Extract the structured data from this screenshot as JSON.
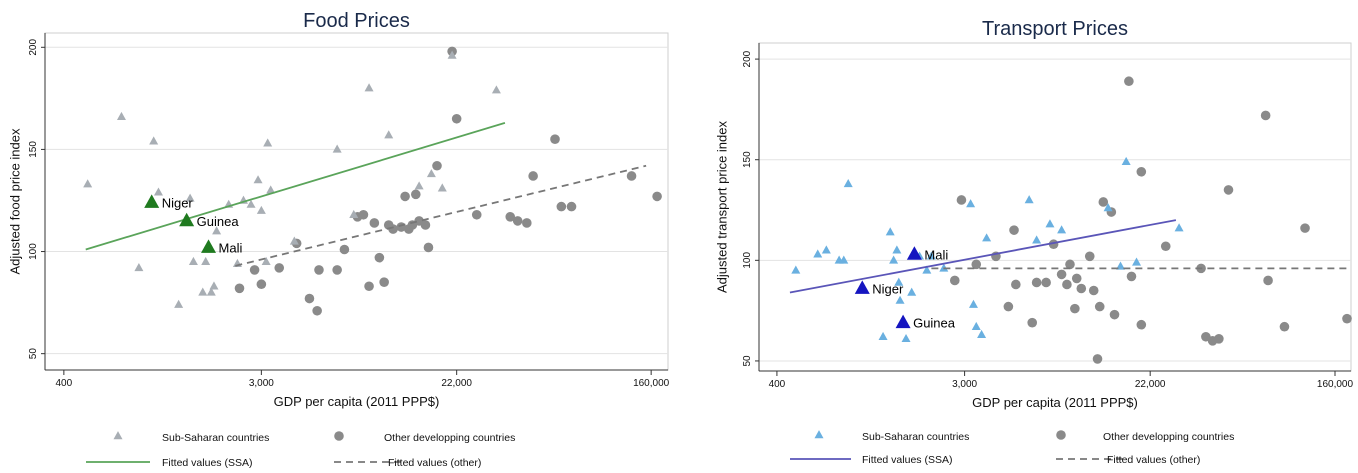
{
  "chart_data": [
    {
      "type": "scatter",
      "title": "Food Prices",
      "xlabel": "GDP per capita (2011 PPP$)",
      "ylabel": "Adjusted food price index",
      "xscale": "log",
      "xlim": [
        330,
        190000
      ],
      "ylim": [
        42,
        207
      ],
      "xticks": [
        400,
        3000,
        22000,
        160000
      ],
      "xtick_labels": [
        "400",
        "3,000",
        "22,000",
        "160,000"
      ],
      "yticks": [
        50,
        100,
        150,
        200
      ],
      "ytick_labels": [
        "50",
        "100",
        "150",
        "200"
      ],
      "grid": "horizontal",
      "colors": {
        "ssa": "#a8aeb4",
        "other": "#8a8a8a",
        "highlight": "#1f7a1f",
        "fit_ssa": "#5aa45a",
        "fit_other": "#777777"
      },
      "ssa_points": [
        [
          510,
          133
        ],
        [
          720,
          166
        ],
        [
          860,
          92
        ],
        [
          1000,
          154
        ],
        [
          1050,
          129
        ],
        [
          1290,
          74
        ],
        [
          1450,
          126
        ],
        [
          1500,
          95
        ],
        [
          1650,
          80
        ],
        [
          1700,
          95
        ],
        [
          1800,
          80
        ],
        [
          1850,
          83
        ],
        [
          1900,
          110
        ],
        [
          2150,
          123
        ],
        [
          2350,
          94
        ],
        [
          2500,
          125
        ],
        [
          2700,
          123
        ],
        [
          2900,
          135
        ],
        [
          3000,
          120
        ],
        [
          3200,
          153
        ],
        [
          3300,
          130
        ],
        [
          3150,
          95
        ],
        [
          4200,
          105
        ],
        [
          6500,
          150
        ],
        [
          7700,
          118
        ],
        [
          9000,
          180
        ],
        [
          11000,
          157
        ],
        [
          15000,
          132
        ],
        [
          17000,
          138
        ],
        [
          19000,
          131
        ],
        [
          21000,
          196
        ],
        [
          33000,
          179
        ]
      ],
      "other_points": [
        [
          2400,
          82
        ],
        [
          2800,
          91
        ],
        [
          3000,
          84
        ],
        [
          3600,
          92
        ],
        [
          4300,
          104
        ],
        [
          4900,
          77
        ],
        [
          5300,
          71
        ],
        [
          5400,
          91
        ],
        [
          6500,
          91
        ],
        [
          7000,
          101
        ],
        [
          8000,
          117
        ],
        [
          8500,
          118
        ],
        [
          9000,
          83
        ],
        [
          9500,
          114
        ],
        [
          10000,
          97
        ],
        [
          10500,
          85
        ],
        [
          11000,
          113
        ],
        [
          11500,
          111
        ],
        [
          12500,
          112
        ],
        [
          13000,
          127
        ],
        [
          13500,
          111
        ],
        [
          14000,
          113
        ],
        [
          14500,
          128
        ],
        [
          15000,
          115
        ],
        [
          16000,
          113
        ],
        [
          16500,
          102
        ],
        [
          18000,
          142
        ],
        [
          21000,
          198
        ],
        [
          22000,
          165
        ],
        [
          27000,
          118
        ],
        [
          38000,
          117
        ],
        [
          41000,
          115
        ],
        [
          45000,
          114
        ],
        [
          48000,
          137
        ],
        [
          60000,
          155
        ],
        [
          64000,
          122
        ],
        [
          71000,
          122
        ],
        [
          131000,
          137
        ],
        [
          170000,
          127
        ]
      ],
      "highlighted": [
        {
          "label": "Niger",
          "x": 980,
          "y": 124
        },
        {
          "label": "Guinea",
          "x": 1400,
          "y": 115
        },
        {
          "label": "Mali",
          "x": 1750,
          "y": 102
        }
      ],
      "fit_lines": [
        {
          "name": "Fitted values (SSA)",
          "style": "solid",
          "x": [
            500,
            36000
          ],
          "y": [
            101,
            163
          ]
        },
        {
          "name": "Fitted values (other)",
          "style": "dashed",
          "x": [
            2300,
            152000
          ],
          "y": [
            93,
            142
          ]
        }
      ],
      "legend": {
        "placement": "bottom",
        "items": [
          "Sub-Saharan countries",
          "Other developping countries",
          "Fitted values (SSA)",
          "Fitted values (other)"
        ]
      }
    },
    {
      "type": "scatter",
      "title": "Transport Prices",
      "xlabel": "GDP per capita (2011 PPP$)",
      "ylabel": "Adjusted transport price index",
      "xscale": "log",
      "xlim": [
        330,
        190000
      ],
      "ylim": [
        45,
        208
      ],
      "xticks": [
        400,
        3000,
        22000,
        160000
      ],
      "xtick_labels": [
        "400",
        "3,000",
        "22,000",
        "160,000"
      ],
      "yticks": [
        50,
        100,
        150,
        200
      ],
      "ytick_labels": [
        "50",
        "100",
        "150",
        "200"
      ],
      "grid": "horizontal",
      "colors": {
        "ssa": "#6ab0e0",
        "other": "#8a8a8a",
        "highlight": "#1515c0",
        "fit_ssa": "#5a55b8",
        "fit_other": "#777777"
      },
      "ssa_points": [
        [
          490,
          95
        ],
        [
          620,
          103
        ],
        [
          680,
          105
        ],
        [
          780,
          100
        ],
        [
          820,
          100
        ],
        [
          860,
          138
        ],
        [
          1250,
          62
        ],
        [
          1350,
          114
        ],
        [
          1400,
          100
        ],
        [
          1450,
          105
        ],
        [
          1480,
          89
        ],
        [
          1500,
          80
        ],
        [
          1600,
          61
        ],
        [
          1700,
          84
        ],
        [
          1850,
          102
        ],
        [
          2000,
          95
        ],
        [
          2100,
          102
        ],
        [
          2400,
          96
        ],
        [
          3200,
          128
        ],
        [
          3300,
          78
        ],
        [
          3400,
          67
        ],
        [
          3600,
          63
        ],
        [
          3800,
          111
        ],
        [
          6000,
          130
        ],
        [
          6500,
          110
        ],
        [
          7500,
          118
        ],
        [
          8500,
          115
        ],
        [
          14000,
          126
        ],
        [
          16000,
          97
        ],
        [
          17000,
          149
        ],
        [
          19000,
          99
        ],
        [
          30000,
          116
        ]
      ],
      "other_points": [
        [
          2700,
          90
        ],
        [
          2900,
          130
        ],
        [
          3400,
          98
        ],
        [
          4200,
          102
        ],
        [
          4800,
          77
        ],
        [
          5100,
          115
        ],
        [
          5200,
          88
        ],
        [
          6200,
          69
        ],
        [
          6500,
          89
        ],
        [
          7200,
          89
        ],
        [
          7800,
          108
        ],
        [
          8500,
          93
        ],
        [
          9000,
          88
        ],
        [
          9300,
          98
        ],
        [
          9800,
          76
        ],
        [
          10000,
          91
        ],
        [
          10500,
          86
        ],
        [
          11500,
          102
        ],
        [
          12000,
          85
        ],
        [
          12500,
          51
        ],
        [
          12800,
          77
        ],
        [
          13300,
          129
        ],
        [
          14500,
          124
        ],
        [
          15000,
          73
        ],
        [
          17500,
          189
        ],
        [
          18000,
          92
        ],
        [
          20000,
          68
        ],
        [
          20000,
          144
        ],
        [
          26000,
          107
        ],
        [
          38000,
          96
        ],
        [
          40000,
          62
        ],
        [
          43000,
          60
        ],
        [
          46000,
          61
        ],
        [
          51000,
          135
        ],
        [
          76000,
          172
        ],
        [
          78000,
          90
        ],
        [
          93000,
          67
        ],
        [
          116000,
          116
        ],
        [
          182000,
          71
        ]
      ],
      "highlighted": [
        {
          "label": "Mali",
          "x": 1750,
          "y": 103
        },
        {
          "label": "Niger",
          "x": 1000,
          "y": 86
        },
        {
          "label": "Guinea",
          "x": 1550,
          "y": 69
        }
      ],
      "fit_lines": [
        {
          "name": "Fitted values (SSA)",
          "style": "solid",
          "x": [
            460,
            29000
          ],
          "y": [
            84,
            120
          ]
        },
        {
          "name": "Fitted values (other)",
          "style": "dashed",
          "x": [
            2100,
            182000
          ],
          "y": [
            96,
            96
          ]
        }
      ],
      "legend": {
        "placement": "bottom",
        "items": [
          "Sub-Saharan countries",
          "Other developping countries",
          "Fitted values (SSA)",
          "Fitted values (other)"
        ]
      }
    }
  ]
}
